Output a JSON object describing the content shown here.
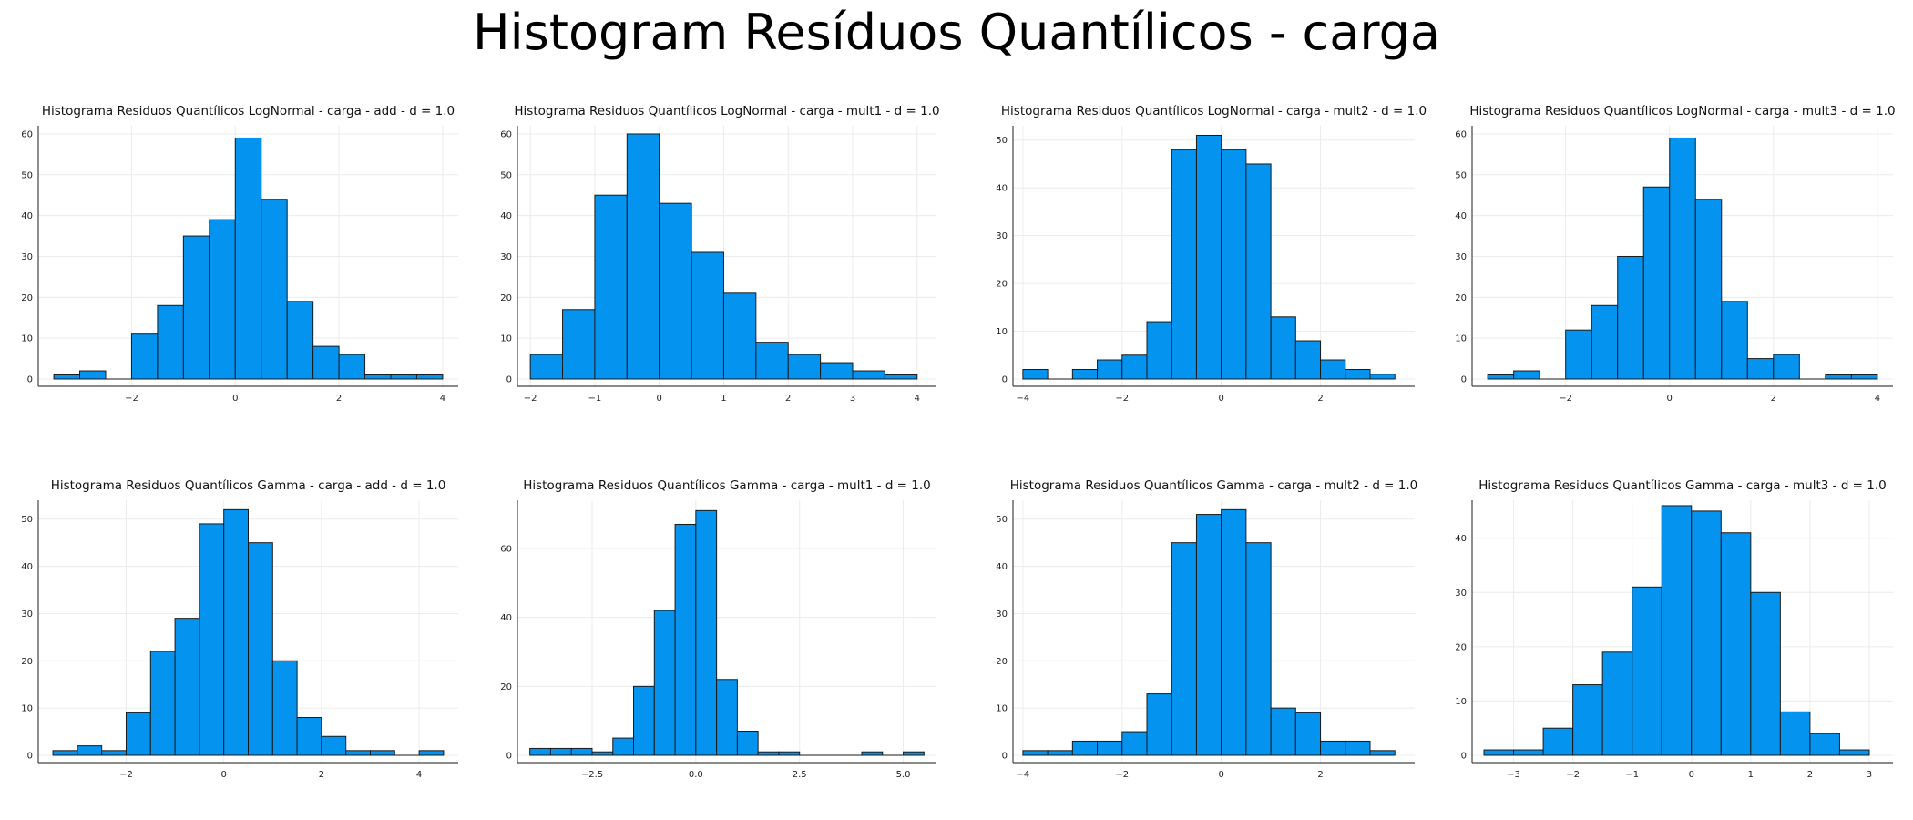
{
  "page": {
    "title": "Histogram Resíduos Quantílicos - carga"
  },
  "colors": {
    "bar_fill": "#0593F0",
    "bar_stroke": "#1a1a1a",
    "grid": "#ececec",
    "axis": "#444444"
  },
  "chart_data": [
    {
      "type": "bar",
      "title": "Histograma Residuos Quantílicos LogNormal - carga - add - d = 1.0",
      "xlim": [
        -3.8,
        4.3
      ],
      "ylim": [
        0,
        62
      ],
      "xticks": [
        -2,
        0,
        2,
        4
      ],
      "xtick_labels": [
        "−2",
        "0",
        "2",
        "4"
      ],
      "yticks": [
        0,
        10,
        20,
        30,
        40,
        50,
        60
      ],
      "grid": true,
      "legend": "none",
      "bin_edges": [
        -3.5,
        -3,
        -2.5,
        -2,
        -1.5,
        -1,
        -0.5,
        0,
        0.5,
        1,
        1.5,
        2,
        2.5,
        3,
        3.5,
        4
      ],
      "values": [
        1,
        2,
        0,
        11,
        18,
        35,
        39,
        59,
        44,
        19,
        8,
        6,
        1,
        1,
        1
      ]
    },
    {
      "type": "bar",
      "title": "Histograma Residuos Quantílicos LogNormal - carga - mult1 - d = 1.0",
      "xlim": [
        -2.2,
        4.3
      ],
      "ylim": [
        0,
        62
      ],
      "xticks": [
        -2,
        -1,
        0,
        1,
        2,
        3,
        4
      ],
      "xtick_labels": [
        "−2",
        "−1",
        "0",
        "1",
        "2",
        "3",
        "4"
      ],
      "yticks": [
        0,
        10,
        20,
        30,
        40,
        50,
        60
      ],
      "grid": true,
      "legend": "none",
      "bin_edges": [
        -2,
        -1.5,
        -1,
        -0.5,
        0,
        0.5,
        1,
        1.5,
        2,
        2.5,
        3,
        3.5,
        4
      ],
      "values": [
        6,
        17,
        45,
        60,
        43,
        31,
        21,
        9,
        6,
        4,
        2,
        1
      ]
    },
    {
      "type": "bar",
      "title": "Histograma Residuos Quantílicos LogNormal - carga - mult2 - d = 1.0",
      "xlim": [
        -4.2,
        3.9
      ],
      "ylim": [
        0,
        53
      ],
      "xticks": [
        -4,
        -2,
        0,
        2
      ],
      "xtick_labels": [
        "−4",
        "−2",
        "0",
        "2"
      ],
      "yticks": [
        0,
        10,
        20,
        30,
        40,
        50
      ],
      "grid": true,
      "legend": "none",
      "bin_edges": [
        -4,
        -3.5,
        -3,
        -2.5,
        -2,
        -1.5,
        -1,
        -0.5,
        0,
        0.5,
        1,
        1.5,
        2,
        2.5,
        3,
        3.5
      ],
      "values": [
        2,
        0,
        2,
        4,
        5,
        12,
        48,
        51,
        48,
        45,
        13,
        8,
        4,
        2,
        1
      ]
    },
    {
      "type": "bar",
      "title": "Histograma Residuos Quantílicos LogNormal - carga - mult3 - d = 1.0",
      "xlim": [
        -3.8,
        4.3
      ],
      "ylim": [
        0,
        62
      ],
      "xticks": [
        -2,
        0,
        2,
        4
      ],
      "xtick_labels": [
        "−2",
        "0",
        "2",
        "4"
      ],
      "yticks": [
        0,
        10,
        20,
        30,
        40,
        50,
        60
      ],
      "grid": true,
      "legend": "none",
      "bin_edges": [
        -3.5,
        -3,
        -2.5,
        -2,
        -1.5,
        -1,
        -0.5,
        0,
        0.5,
        1,
        1.5,
        2,
        2.5,
        3,
        3.5,
        4
      ],
      "values": [
        1,
        2,
        0,
        12,
        18,
        30,
        47,
        59,
        44,
        19,
        5,
        6,
        0,
        1,
        1
      ]
    },
    {
      "type": "bar",
      "title": "Histograma Residuos Quantílicos Gamma - carga - add - d = 1.0",
      "xlim": [
        -3.8,
        4.8
      ],
      "ylim": [
        0,
        54
      ],
      "xticks": [
        -2,
        0,
        2,
        4
      ],
      "xtick_labels": [
        "−2",
        "0",
        "2",
        "4"
      ],
      "yticks": [
        0,
        10,
        20,
        30,
        40,
        50
      ],
      "grid": true,
      "legend": "none",
      "bin_edges": [
        -3.5,
        -3,
        -2.5,
        -2,
        -1.5,
        -1,
        -0.5,
        0,
        0.5,
        1,
        1.5,
        2,
        2.5,
        3,
        3.5,
        4,
        4.5
      ],
      "values": [
        1,
        2,
        1,
        9,
        22,
        29,
        49,
        52,
        45,
        20,
        8,
        4,
        1,
        1,
        0,
        1
      ]
    },
    {
      "type": "bar",
      "title": "Histograma Residuos Quantílicos Gamma - carga - mult1 - d = 1.0",
      "xlim": [
        -4.3,
        5.8
      ],
      "ylim": [
        0,
        74
      ],
      "xticks": [
        -2.5,
        0,
        2.5,
        5
      ],
      "xtick_labels": [
        "−2.5",
        "0.0",
        "2.5",
        "5.0"
      ],
      "yticks": [
        0,
        20,
        40,
        60
      ],
      "grid": true,
      "legend": "none",
      "bin_edges": [
        -4,
        -3.5,
        -3,
        -2.5,
        -2,
        -1.5,
        -1,
        -0.5,
        0,
        0.5,
        1,
        1.5,
        2,
        2.5,
        3,
        3.5,
        4,
        4.5,
        5,
        5.5
      ],
      "values": [
        2,
        2,
        2,
        1,
        5,
        20,
        42,
        67,
        71,
        22,
        7,
        1,
        1,
        0,
        0,
        0,
        1,
        0,
        1
      ]
    },
    {
      "type": "bar",
      "title": "Histograma Residuos Quantílicos Gamma - carga - mult2 - d = 1.0",
      "xlim": [
        -4.2,
        3.9
      ],
      "ylim": [
        0,
        54
      ],
      "xticks": [
        -4,
        -2,
        0,
        2
      ],
      "xtick_labels": [
        "−4",
        "−2",
        "0",
        "2"
      ],
      "yticks": [
        0,
        10,
        20,
        30,
        40,
        50
      ],
      "grid": true,
      "legend": "none",
      "bin_edges": [
        -4,
        -3.5,
        -3,
        -2.5,
        -2,
        -1.5,
        -1,
        -0.5,
        0,
        0.5,
        1,
        1.5,
        2,
        2.5,
        3,
        3.5
      ],
      "values": [
        1,
        1,
        3,
        3,
        5,
        13,
        45,
        51,
        52,
        45,
        10,
        9,
        3,
        3,
        1
      ]
    },
    {
      "type": "bar",
      "title": "Histograma Residuos Quantílicos Gamma - carga - mult3 - d = 1.0",
      "xlim": [
        -3.7,
        3.4
      ],
      "ylim": [
        0,
        47
      ],
      "xticks": [
        -3,
        -2,
        -1,
        0,
        1,
        2,
        3
      ],
      "xtick_labels": [
        "−3",
        "−2",
        "−1",
        "0",
        "1",
        "2",
        "3"
      ],
      "yticks": [
        0,
        10,
        20,
        30,
        40
      ],
      "grid": true,
      "legend": "none",
      "bin_edges": [
        -3.5,
        -3,
        -2.5,
        -2,
        -1.5,
        -1,
        -0.5,
        0,
        0.5,
        1,
        1.5,
        2,
        2.5,
        3
      ],
      "values": [
        1,
        1,
        5,
        13,
        19,
        31,
        46,
        45,
        41,
        30,
        8,
        4,
        1
      ]
    }
  ]
}
